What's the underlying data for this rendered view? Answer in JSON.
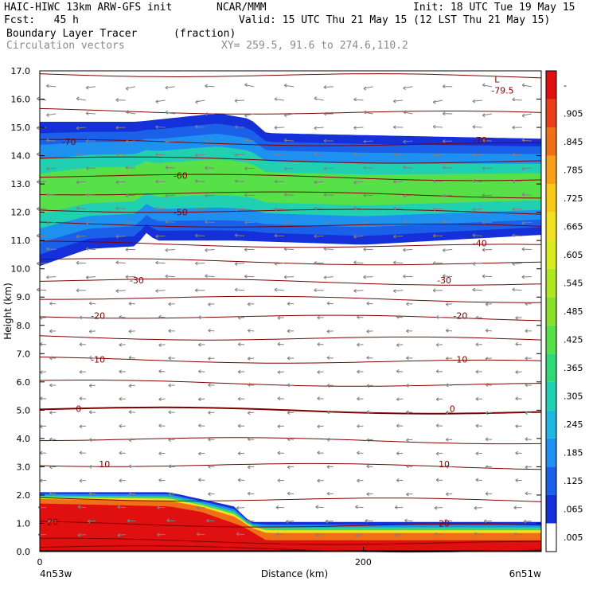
{
  "header": {
    "model": "HAIC-HIWC 13km ARW-GFS init",
    "org": "NCAR/MMM",
    "init": "Init: 18 UTC Tue 19 May 15",
    "fcst": "Fcst:   45 h",
    "valid": "Valid: 15 UTC Thu 21 May 15 (12 LST Thu 21 May 15)",
    "field": "Boundary Layer Tracer",
    "units": "(fraction)",
    "vectors": "Circulation vectors",
    "xy": "XY= 259.5, 91.6 to 274.6,110.2"
  },
  "chart_data": {
    "type": "heatmap",
    "title": "Boundary Layer Tracer",
    "ylabel": "Height (km)",
    "xlabel": "Distance (km)",
    "ylim": [
      0,
      17
    ],
    "xlim": [
      0,
      310
    ],
    "y_ticks": [
      "0.0",
      "1.0",
      "2.0",
      "3.0",
      "4.0",
      "5.0",
      "6.0",
      "7.0",
      "8.0",
      "9.0",
      "10.0",
      "11.0",
      "12.0",
      "13.0",
      "14.0",
      "15.0",
      "16.0",
      "17.0"
    ],
    "x_ticks": [
      "0",
      "200"
    ],
    "x_end_labels": {
      "left": "4n53w",
      "right": "6n51w"
    },
    "colorbar": {
      "labels": [
        ".005",
        ".065",
        ".125",
        ".185",
        ".245",
        ".305",
        ".365",
        ".425",
        ".485",
        ".545",
        ".605",
        ".665",
        ".725",
        ".785",
        ".845",
        ".905",
        "-"
      ],
      "colors": [
        "#ffffff",
        "#1530d8",
        "#1a60e8",
        "#1e90f0",
        "#20b8e0",
        "#20d0b0",
        "#30d878",
        "#58e048",
        "#88e028",
        "#b0e820",
        "#d8ea20",
        "#f0e020",
        "#f8c818",
        "#f8a018",
        "#f07018",
        "#e84018",
        "#e01010"
      ]
    },
    "contour_labels": [
      {
        "text": "-70",
        "x": 18,
        "y": 14.5
      },
      {
        "text": "-70",
        "x": 272,
        "y": 14.55
      },
      {
        "text": "-60",
        "x": 87,
        "y": 13.3
      },
      {
        "text": "-50",
        "x": 87,
        "y": 12.0
      },
      {
        "text": "-40",
        "x": 272,
        "y": 10.9
      },
      {
        "text": "-30",
        "x": 60,
        "y": 9.6
      },
      {
        "text": "-30",
        "x": 250,
        "y": 9.6
      },
      {
        "text": "-20",
        "x": 36,
        "y": 8.35
      },
      {
        "text": "-20",
        "x": 260,
        "y": 8.35
      },
      {
        "text": "-10",
        "x": 36,
        "y": 6.8
      },
      {
        "text": "-10",
        "x": 260,
        "y": 6.8
      },
      {
        "text": "0",
        "x": 24,
        "y": 5.05
      },
      {
        "text": "0",
        "x": 255,
        "y": 5.05
      },
      {
        "text": "10",
        "x": 40,
        "y": 3.1
      },
      {
        "text": "10",
        "x": 250,
        "y": 3.1
      },
      {
        "text": "20",
        "x": 8,
        "y": 1.05
      },
      {
        "text": "20",
        "x": 250,
        "y": 1.0
      }
    ],
    "extremum": {
      "label": "L",
      "value": "-79.5",
      "x": 286,
      "y": 16.7
    },
    "upper_layer_top_km": [
      [
        0,
        15.2
      ],
      [
        60,
        15.2
      ],
      [
        110,
        15.5
      ],
      [
        130,
        15.3
      ],
      [
        140,
        14.8
      ],
      [
        180,
        14.75
      ],
      [
        310,
        14.6
      ]
    ],
    "upper_layer_bottom_km": [
      [
        0,
        10.1
      ],
      [
        30,
        10.7
      ],
      [
        60,
        10.8
      ],
      [
        65,
        11.3
      ],
      [
        72,
        11.0
      ],
      [
        120,
        11.0
      ],
      [
        200,
        10.85
      ],
      [
        310,
        11.2
      ]
    ],
    "lower_layer_top_km": [
      [
        0,
        2.1
      ],
      [
        80,
        2.1
      ],
      [
        100,
        1.85
      ],
      [
        120,
        1.6
      ],
      [
        130,
        1.05
      ],
      [
        160,
        1.05
      ],
      [
        310,
        1.05
      ]
    ],
    "lower_core_top_km": [
      [
        0,
        1.7
      ],
      [
        80,
        1.6
      ],
      [
        100,
        1.4
      ],
      [
        125,
        0.9
      ],
      [
        140,
        0.4
      ],
      [
        310,
        0.4
      ]
    ]
  }
}
